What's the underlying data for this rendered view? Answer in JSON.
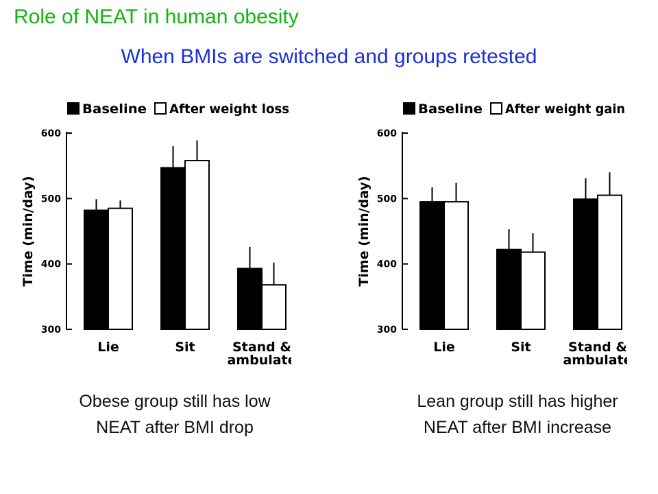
{
  "slide": {
    "title": "Role of NEAT in human obesity",
    "subtitle": "When BMIs are switched and groups retested",
    "title_color": "#12b512",
    "subtitle_color": "#1c2fd6"
  },
  "captions": {
    "left": [
      "Obese group still has low",
      "NEAT after BMI drop"
    ],
    "right": [
      "Lean group still has higher",
      "NEAT after BMI increase"
    ]
  },
  "chart_data": [
    {
      "type": "bar",
      "title": "",
      "xlabel": "",
      "ylabel": "Time (min/day)",
      "ylim": [
        300,
        600
      ],
      "yticks": [
        300,
        400,
        500,
        600
      ],
      "categories": [
        "Lie",
        "Sit",
        "Stand & ambulate"
      ],
      "legend_position": "top",
      "grid": false,
      "series": [
        {
          "name": "Baseline",
          "fill": "#000000",
          "values": [
            482,
            547,
            393
          ],
          "error": [
            17,
            33,
            33
          ]
        },
        {
          "name": "After weight loss",
          "fill": "#ffffff",
          "values": [
            485,
            558,
            368
          ],
          "error": [
            12,
            31,
            34
          ]
        }
      ]
    },
    {
      "type": "bar",
      "title": "",
      "xlabel": "",
      "ylabel": "Time (min/day)",
      "ylim": [
        300,
        600
      ],
      "yticks": [
        300,
        400,
        500,
        600
      ],
      "categories": [
        "Lie",
        "Sit",
        "Stand & ambulate"
      ],
      "legend_position": "top",
      "grid": false,
      "series": [
        {
          "name": "Baseline",
          "fill": "#000000",
          "values": [
            495,
            422,
            499
          ],
          "error": [
            22,
            31,
            32
          ]
        },
        {
          "name": "After weight gain",
          "fill": "#ffffff",
          "values": [
            495,
            418,
            505
          ],
          "error": [
            29,
            29,
            35
          ]
        }
      ]
    }
  ]
}
